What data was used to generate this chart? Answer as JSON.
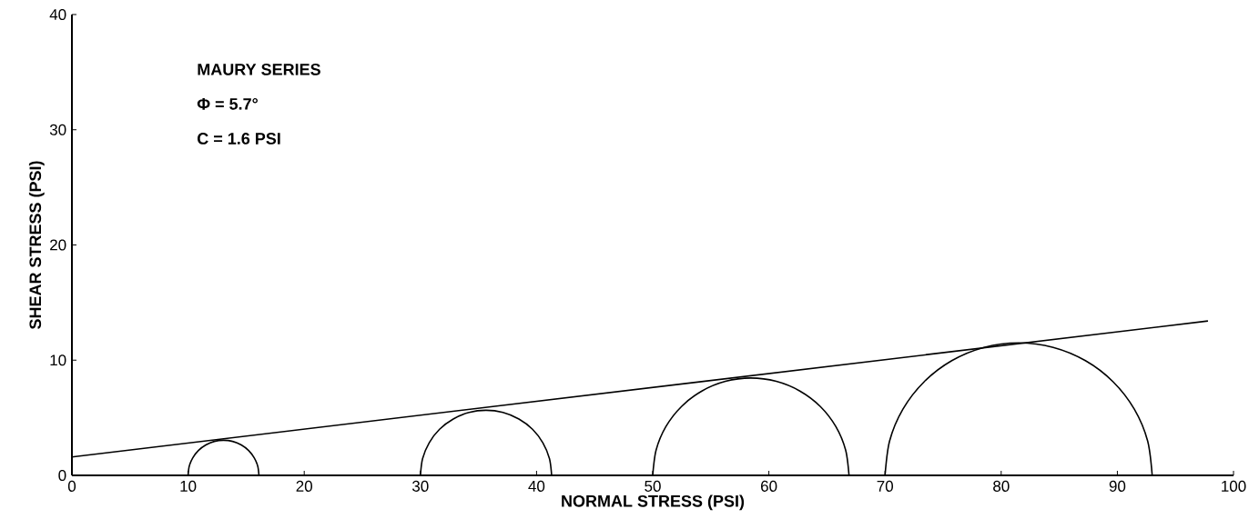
{
  "chart_data": {
    "type": "line",
    "xlabel": "NORMAL STRESS (PSI)",
    "ylabel": "SHEAR STRESS (PSI)",
    "annotations": [
      "MAURY SERIES",
      "Φ = 5.7°",
      "C = 1.6 PSI"
    ],
    "xlim": [
      0,
      100
    ],
    "ylim": [
      0,
      40
    ],
    "xticks": [
      0,
      10,
      20,
      30,
      40,
      50,
      60,
      70,
      80,
      90,
      100
    ],
    "yticks": [
      0,
      10,
      20,
      30,
      40
    ],
    "series": [
      {
        "color": "#000000",
        "x": [
          0,
          97.8
        ],
        "values": [
          1.6,
          13.4
        ]
      },
      {
        "color": "#000000",
        "x": [
          10,
          10.1,
          10.41,
          10.89,
          11.53,
          12.26,
          13.05,
          13.84,
          14.58,
          15.21,
          15.69,
          16.0,
          16.1
        ],
        "values": [
          0,
          0.79,
          1.53,
          2.16,
          2.64,
          2.95,
          3.05,
          2.95,
          2.64,
          2.16,
          1.53,
          0.79,
          0
        ]
      },
      {
        "color": "#000000",
        "x": [
          30,
          30.19,
          30.76,
          31.65,
          32.83,
          34.19,
          35.65,
          37.11,
          38.48,
          39.65,
          40.54,
          41.11,
          41.3
        ],
        "values": [
          0,
          1.46,
          2.83,
          4.0,
          4.89,
          5.46,
          5.65,
          5.46,
          4.89,
          4.0,
          2.83,
          1.46,
          0
        ]
      },
      {
        "color": "#000000",
        "x": [
          50,
          50.29,
          51.13,
          52.48,
          54.23,
          56.26,
          58.45,
          60.64,
          62.67,
          64.43,
          65.77,
          66.61,
          66.9
        ],
        "values": [
          0,
          2.19,
          4.23,
          5.98,
          7.32,
          8.16,
          8.45,
          8.16,
          7.32,
          5.98,
          4.23,
          2.19,
          0
        ]
      },
      {
        "color": "#000000",
        "x": [
          70,
          70.39,
          71.54,
          73.37,
          75.75,
          78.52,
          81.5,
          84.48,
          87.25,
          89.63,
          91.46,
          92.61,
          93
        ],
        "values": [
          0,
          2.98,
          5.75,
          8.13,
          9.96,
          11.11,
          11.5,
          11.11,
          9.96,
          8.13,
          5.75,
          2.98,
          0
        ]
      }
    ]
  }
}
